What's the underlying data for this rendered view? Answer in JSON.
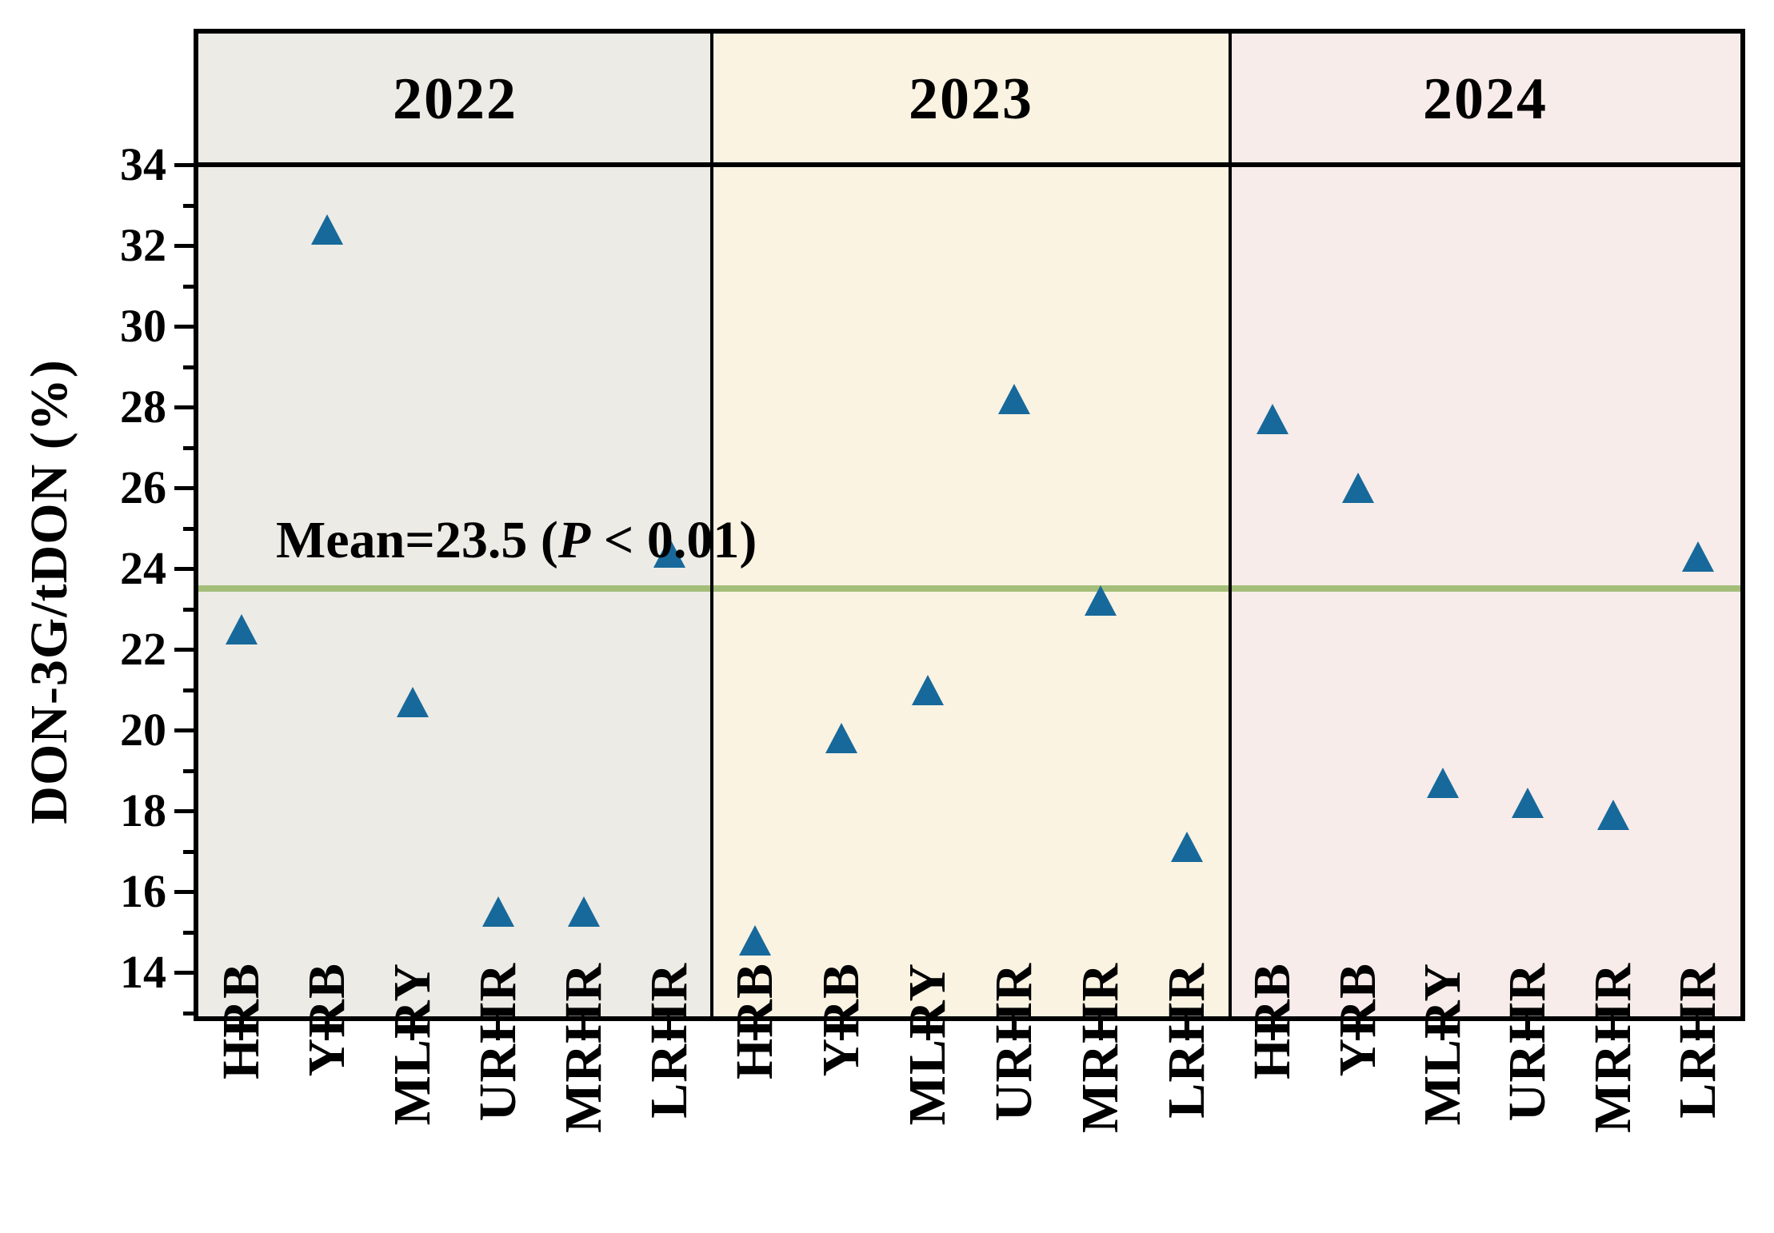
{
  "figure": {
    "y_axis_title": "DON-3G/tDON (%)",
    "mean_annotation": {
      "prefix": "Mean=23.5 (",
      "p": "P",
      "suffix": " < 0.01)"
    }
  },
  "chart_data": {
    "type": "scatter",
    "title": "",
    "xlabel": "",
    "ylabel": "DON-3G/tDON (%)",
    "ylim": [
      12.9,
      34
    ],
    "yticks_major": [
      14,
      16,
      18,
      20,
      22,
      24,
      26,
      28,
      30,
      32,
      34
    ],
    "yticks_minor": [
      13,
      15,
      17,
      19,
      21,
      23,
      25,
      27,
      29,
      31,
      33
    ],
    "grid": false,
    "legend": "none",
    "categories": [
      "HRB",
      "YRB",
      "MLRY",
      "URHR",
      "MRHR",
      "LRHR"
    ],
    "marker": {
      "shape": "triangle-up",
      "color": "#17699b",
      "width": 40,
      "height": 38
    },
    "mean_line": {
      "value": 23.5,
      "color": "#a4be7a",
      "label": "Mean=23.5 (P < 0.01)"
    },
    "panels": [
      {
        "year": "2022",
        "bg": "#ecebe5",
        "values": [
          22.5,
          32.4,
          20.7,
          15.5,
          15.5,
          24.4
        ]
      },
      {
        "year": "2023",
        "bg": "#faf3e2",
        "values": [
          14.8,
          19.8,
          21.0,
          28.2,
          23.2,
          17.1
        ]
      },
      {
        "year": "2024",
        "bg": "#f7ecea",
        "values": [
          27.7,
          26.0,
          18.7,
          18.2,
          17.9,
          24.3
        ]
      }
    ]
  }
}
